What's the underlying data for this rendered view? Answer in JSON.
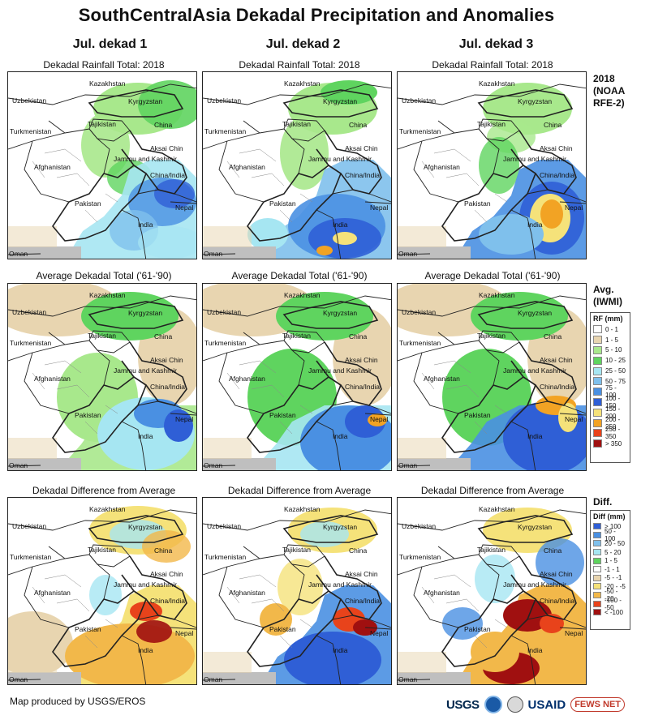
{
  "title": "SouthCentralAsia Dekadal Precipitation and Anomalies",
  "columns": [
    "Jul. dekad 1",
    "Jul. dekad 2",
    "Jul. dekad 3"
  ],
  "rows": [
    {
      "subtitle": "Dekadal Rainfall Total: 2018",
      "side_label": [
        "2018",
        "(NOAA",
        "RFE-2)"
      ]
    },
    {
      "subtitle": "Average Dekadal Total ('61-'90)",
      "side_label": [
        "Avg.",
        "(IWMI)"
      ]
    },
    {
      "subtitle": "Dekadal Difference from Average",
      "side_label": [
        "Diff."
      ]
    }
  ],
  "map_labels": {
    "kazakhstan": "Kazakhstan",
    "uzbekistan": "Uzbekistan",
    "kyrgyzstan": "Kyrgyzstan",
    "tajikistan": "Tajikistan",
    "china": "China",
    "turkmenistan": "Turkmenistan",
    "aksai_chin": "Aksai Chin",
    "jammu_kashmir": "Jammu and Kashmir",
    "china_india": "China/India",
    "afghanistan": "Afghanistan",
    "pakistan": "Pakistan",
    "nepal": "Nepal",
    "india": "India",
    "oman": "Oman"
  },
  "rf_legend": {
    "title": "RF (mm)",
    "items": [
      {
        "label": "0 - 1",
        "color": "#ffffff"
      },
      {
        "label": "1 - 5",
        "color": "#e8d5b0"
      },
      {
        "label": "5 - 10",
        "color": "#a8e88c"
      },
      {
        "label": "10 - 25",
        "color": "#5fd45f"
      },
      {
        "label": "25 - 50",
        "color": "#a6e6f2"
      },
      {
        "label": "50 - 75",
        "color": "#7fc0ec"
      },
      {
        "label": "75 - 100",
        "color": "#4a90e2"
      },
      {
        "label": "100 - 150",
        "color": "#2f5fd6"
      },
      {
        "label": "150 - 200",
        "color": "#f5e27a"
      },
      {
        "label": "200 - 250",
        "color": "#f2a324"
      },
      {
        "label": "250 - 350",
        "color": "#e8431b"
      },
      {
        "label": "> 350",
        "color": "#a01010"
      }
    ]
  },
  "diff_legend": {
    "title": "Diff (mm)",
    "items": [
      {
        "label": "> 100",
        "color": "#2f5fd6"
      },
      {
        "label": "50 - 100",
        "color": "#4a90e2"
      },
      {
        "label": "20 - 50",
        "color": "#7fc0ec"
      },
      {
        "label": "5 - 20",
        "color": "#a6e6f2"
      },
      {
        "label": "1 - 5",
        "color": "#5fd45f"
      },
      {
        "label": "-1 - 1",
        "color": "#ffffff"
      },
      {
        "label": "-5 - -1",
        "color": "#e8d5b0"
      },
      {
        "label": "-20 - -5",
        "color": "#f5e27a"
      },
      {
        "label": "-50 - -20",
        "color": "#f2b84a"
      },
      {
        "label": "-100 - -50",
        "color": "#e8431b"
      },
      {
        "label": "< -100",
        "color": "#a01010"
      }
    ]
  },
  "credit": "Map produced by USGS/EROS",
  "logos": {
    "usgs": "USGS",
    "usaid": "USAID",
    "fews": "FEWS NET"
  }
}
